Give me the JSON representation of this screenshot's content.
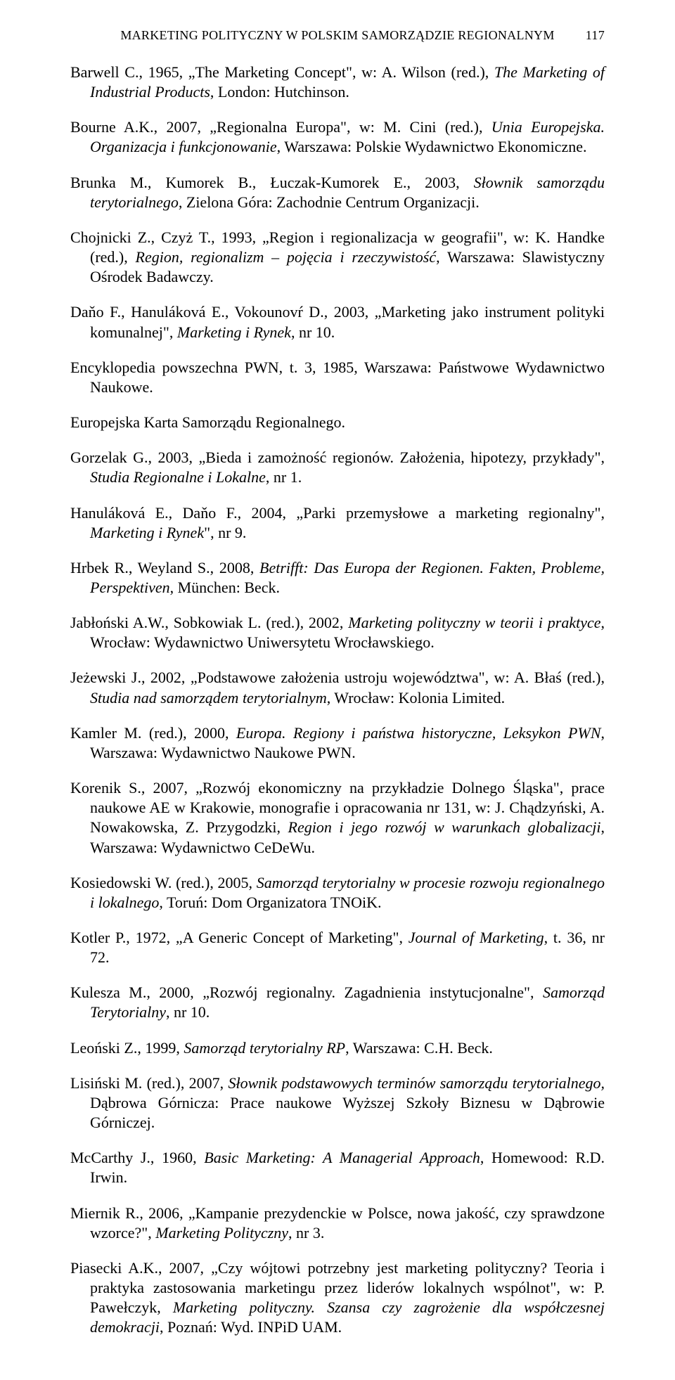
{
  "header": {
    "title": "MARKETING POLITYCZNY W POLSKIM SAMORZĄDZIE REGIONALNYM",
    "page_number": "117"
  },
  "entries": [
    {
      "html": "Barwell C., 1965, „The Marketing Concept\", w: A. Wilson (red.), <i>The Marketing of Industrial Products</i>, London: Hutchinson."
    },
    {
      "html": "Bourne A.K., 2007, „Regionalna Europa\", w: M. Cini (red.), <i>Unia Europejska. Organizacja i funkcjonowanie</i>, Warszawa: Polskie Wydawnictwo Ekonomiczne."
    },
    {
      "html": "Brunka M., Kumorek B., Łuczak-Kumorek E., 2003, <i>Słownik samorządu terytorialnego</i>, Zielona Góra: Zachodnie Centrum Organizacji."
    },
    {
      "html": "Chojnicki Z., Czyż T., 1993, „Region i regionalizacja w geografii\", w: K. Handke (red.), <i>Region, regionalizm – pojęcia i rzeczywistość</i>, Warszawa: Slawistyczny Ośrodek Badawczy."
    },
    {
      "html": "Daňo F., Hanuláková E., Vokounovŕ D., 2003, „Marketing jako instrument polityki komunalnej\", <i>Marketing i Rynek</i>, nr 10."
    },
    {
      "html": "Encyklopedia powszechna PWN, t. 3, 1985, Warszawa: Państwowe Wydawnictwo Naukowe."
    },
    {
      "html": "Europejska Karta Samorządu Regionalnego."
    },
    {
      "html": "Gorzelak G., 2003, „Bieda i zamożność regionów. Założenia, hipotezy, przykłady\", <i>Studia Regionalne i Lokalne</i>, nr 1."
    },
    {
      "html": "Hanuláková E., Daňo F., 2004, „Parki przemysłowe a marketing regionalny\", <i>Marketing i Rynek</i>\", nr 9."
    },
    {
      "html": "Hrbek R., Weyland S., 2008, <i>Betrifft: Das Europa der Regionen. Fakten, Probleme, Perspektiven</i>, München: Beck."
    },
    {
      "html": "Jabłoński A.W., Sobkowiak L. (red.), 2002, <i>Marketing polityczny w teorii i praktyce</i>, Wrocław: Wydawnictwo Uniwersytetu Wrocławskiego."
    },
    {
      "html": "Jeżewski J., 2002, „Podstawowe założenia ustroju województwa\", w: A. Błaś (red.), <i>Studia nad samorządem terytorialnym</i>, Wrocław: Kolonia Limited."
    },
    {
      "html": "Kamler M. (red.), 2000, <i>Europa. Regiony i państwa historyczne, Leksykon PWN</i>, Warszawa: Wydawnictwo Naukowe PWN."
    },
    {
      "html": "Korenik S., 2007, „Rozwój ekonomiczny na przykładzie Dolnego Śląska\", prace naukowe AE w Krakowie, monografie i opracowania nr 131, w: J. Chądzyński, A. Nowakowska, Z. Przygodzki, <i>Region i jego rozwój w warunkach globalizacji</i>, Warszawa: Wydawnictwo CeDeWu."
    },
    {
      "html": "Kosiedowski W. (red.), 2005, <i>Samorząd terytorialny w procesie rozwoju regionalnego i lokalnego</i>, Toruń: Dom Organizatora TNOiK."
    },
    {
      "html": "Kotler P., 1972, „A Generic Concept of Marketing\", <i>Journal of Marketing</i>, t. 36, nr 72."
    },
    {
      "html": "Kulesza M., 2000, „Rozwój regionalny. Zagadnienia instytucjonalne\", <i>Samorząd Terytorialny</i>, nr 10."
    },
    {
      "html": "Leoński Z., 1999, <i>Samorząd terytorialny RP</i>, Warszawa: C.H. Beck."
    },
    {
      "html": "Lisiński M. (red.), 2007, <i>Słownik podstawowych terminów samorządu terytorialnego,</i> Dąbrowa Górnicza: Prace naukowe Wyższej Szkoły Biznesu w Dąbrowie Górniczej."
    },
    {
      "html": "McCarthy J., 1960, <i>Basic Marketing: A Managerial Approach</i>, Homewood: R.D. Irwin."
    },
    {
      "html": "Miernik R., 2006, „Kampanie prezydenckie w Polsce, nowa jakość, czy sprawdzone wzorce?\", <i>Marketing Polityczny</i>, nr 3."
    },
    {
      "html": "Piasecki A.K., 2007, „Czy wójtowi potrzebny jest marketing polityczny? Teoria i praktyka zastosowania marketingu przez liderów lokalnych wspólnot\", w: P. Pawełczyk, <i>Marketing polityczny. Szansa czy zagrożenie dla współczesnej demokracji</i>, Poznań: Wyd. INPiD UAM."
    }
  ]
}
